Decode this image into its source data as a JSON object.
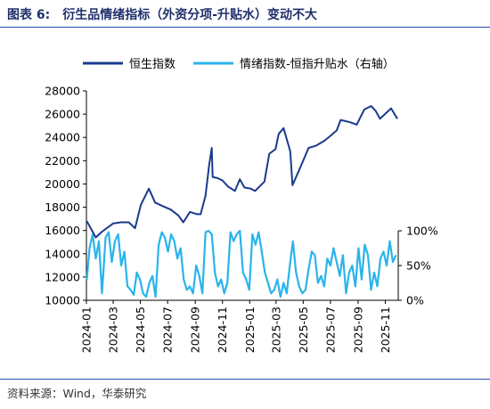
{
  "header": {
    "figure_label": "图表 6:",
    "title": "衍生品情绪指标（外资分项-升贴水）变动不大"
  },
  "footer": {
    "source": "资料来源：Wind，华泰研究"
  },
  "colors": {
    "series1": "#1a3a8c",
    "series2": "#2ab4ea",
    "rule": "#2b4fb0"
  },
  "chart_data": {
    "type": "line",
    "title": "衍生品情绪指标（外资分项-升贴水）变动不大",
    "legend_position": "top",
    "grid": false,
    "x_range": [
      "2024-01-01",
      "2025-11-30"
    ],
    "x_tick_labels": [
      "2024-01",
      "2024-03",
      "2024-05",
      "2024-07",
      "2024-09",
      "2024-11",
      "2025-01",
      "2025-03",
      "2025-05",
      "2025-07",
      "2025-09",
      "2025-11"
    ],
    "left_axis": {
      "ylim": [
        10000,
        28000
      ],
      "tick_labels": [
        "10000",
        "12000",
        "14000",
        "16000",
        "18000",
        "20000",
        "22000",
        "24000",
        "26000",
        "28000"
      ]
    },
    "right_axis": {
      "ylim": [
        0,
        100
      ],
      "unit": "%",
      "tick_labels": [
        "0%",
        "50%",
        "100%"
      ]
    },
    "series": [
      {
        "name": "恒生指数",
        "axis": "left",
        "x": [
          "2024-01-02",
          "2024-01-22",
          "2024-02-05",
          "2024-03-01",
          "2024-03-18",
          "2024-04-05",
          "2024-04-19",
          "2024-05-02",
          "2024-05-20",
          "2024-06-03",
          "2024-06-20",
          "2024-07-08",
          "2024-07-25",
          "2024-08-05",
          "2024-08-20",
          "2024-09-05",
          "2024-09-13",
          "2024-09-24",
          "2024-10-02",
          "2024-10-08",
          "2024-10-10",
          "2024-10-21",
          "2024-11-01",
          "2024-11-13",
          "2024-11-29",
          "2024-12-10",
          "2024-12-20",
          "2025-01-03",
          "2025-01-13",
          "2025-02-03",
          "2025-02-14",
          "2025-02-28",
          "2025-03-07",
          "2025-03-18",
          "2025-04-02",
          "2025-04-07",
          "2025-04-22",
          "2025-05-13",
          "2025-05-30",
          "2025-06-17",
          "2025-06-30",
          "2025-07-15",
          "2025-07-24",
          "2025-08-15",
          "2025-08-29",
          "2025-09-15",
          "2025-09-30",
          "2025-10-10",
          "2025-10-20",
          "2025-10-31",
          "2025-11-14",
          "2025-11-28"
        ],
        "values": [
          16800,
          15400,
          15900,
          16600,
          16700,
          16700,
          16200,
          18200,
          19600,
          18400,
          18100,
          17800,
          17300,
          16700,
          17600,
          17400,
          17400,
          19000,
          21600,
          23100,
          20600,
          20500,
          20300,
          19800,
          19400,
          20400,
          19700,
          19600,
          19400,
          20200,
          22600,
          23000,
          24300,
          24800,
          22800,
          19900,
          21200,
          23100,
          23300,
          23700,
          24100,
          24600,
          25500,
          25300,
          25100,
          26400,
          26700,
          26300,
          25600,
          26000,
          26500,
          25600
        ]
      },
      {
        "name": "情绪指数-恒指升贴水（右轴）",
        "axis": "right",
        "x": [
          "2024-01-02",
          "2024-01-08",
          "2024-01-15",
          "2024-01-22",
          "2024-01-29",
          "2024-02-05",
          "2024-02-13",
          "2024-02-20",
          "2024-02-27",
          "2024-03-05",
          "2024-03-12",
          "2024-03-19",
          "2024-03-26",
          "2024-04-02",
          "2024-04-09",
          "2024-04-16",
          "2024-04-23",
          "2024-04-30",
          "2024-05-07",
          "2024-05-14",
          "2024-05-21",
          "2024-05-28",
          "2024-06-04",
          "2024-06-11",
          "2024-06-18",
          "2024-06-25",
          "2024-07-02",
          "2024-07-09",
          "2024-07-16",
          "2024-07-23",
          "2024-07-30",
          "2024-08-06",
          "2024-08-13",
          "2024-08-20",
          "2024-08-27",
          "2024-09-03",
          "2024-09-10",
          "2024-09-17",
          "2024-09-24",
          "2024-10-01",
          "2024-10-08",
          "2024-10-15",
          "2024-10-22",
          "2024-10-29",
          "2024-11-05",
          "2024-11-12",
          "2024-11-19",
          "2024-11-26",
          "2024-12-03",
          "2024-12-10",
          "2024-12-17",
          "2024-12-24",
          "2024-12-31",
          "2025-01-07",
          "2025-01-14",
          "2025-01-21",
          "2025-01-28",
          "2025-02-04",
          "2025-02-11",
          "2025-02-18",
          "2025-02-25",
          "2025-03-04",
          "2025-03-11",
          "2025-03-18",
          "2025-03-25",
          "2025-04-01",
          "2025-04-08",
          "2025-04-15",
          "2025-04-22",
          "2025-04-29",
          "2025-05-06",
          "2025-05-13",
          "2025-05-20",
          "2025-05-27",
          "2025-06-03",
          "2025-06-10",
          "2025-06-17",
          "2025-06-24",
          "2025-07-01",
          "2025-07-08",
          "2025-07-15",
          "2025-07-22",
          "2025-07-29",
          "2025-08-05",
          "2025-08-12",
          "2025-08-19",
          "2025-08-26",
          "2025-09-02",
          "2025-09-09",
          "2025-09-16",
          "2025-09-23",
          "2025-09-30",
          "2025-10-07",
          "2025-10-14",
          "2025-10-21",
          "2025-10-28",
          "2025-11-04",
          "2025-11-11",
          "2025-11-18",
          "2025-11-25"
        ],
        "values": [
          30,
          75,
          95,
          60,
          85,
          10,
          90,
          98,
          55,
          85,
          95,
          50,
          70,
          20,
          15,
          8,
          40,
          30,
          10,
          5,
          25,
          35,
          5,
          80,
          98,
          90,
          70,
          95,
          85,
          60,
          75,
          30,
          15,
          20,
          10,
          50,
          35,
          10,
          98,
          100,
          95,
          40,
          20,
          30,
          10,
          25,
          98,
          85,
          95,
          100,
          40,
          30,
          15,
          95,
          80,
          98,
          70,
          40,
          25,
          10,
          15,
          30,
          5,
          25,
          10,
          50,
          85,
          40,
          20,
          10,
          15,
          45,
          70,
          65,
          25,
          35,
          20,
          60,
          50,
          75,
          55,
          35,
          65,
          10,
          40,
          50,
          20,
          75,
          30,
          80,
          65,
          15,
          40,
          20,
          60,
          70,
          50,
          85,
          55,
          65
        ]
      }
    ]
  }
}
